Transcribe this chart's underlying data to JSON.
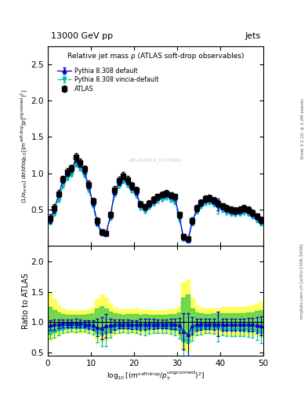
{
  "title_top": "13000 GeV pp",
  "title_right": "Jets",
  "plot_title": "Relative jet mass ρ (ATLAS soft-drop observables)",
  "right_label": "Rivet 3.1.10; ≥ 3.2M events",
  "mcplots_label": "mcplots.cern.ch [arXiv:1306.3436]",
  "atlas_label": "ATLAS2019_I1772062",
  "ylabel_ratio": "Ratio to ATLAS",
  "xlim": [
    0,
    50
  ],
  "ylim_main": [
    0,
    2.75
  ],
  "ylim_ratio": [
    0.45,
    2.25
  ],
  "x_data": [
    0.5,
    1.5,
    2.5,
    3.5,
    4.5,
    5.5,
    6.5,
    7.5,
    8.5,
    9.5,
    10.5,
    11.5,
    12.5,
    13.5,
    14.5,
    15.5,
    16.5,
    17.5,
    18.5,
    19.5,
    20.5,
    21.5,
    22.5,
    23.5,
    24.5,
    25.5,
    26.5,
    27.5,
    28.5,
    29.5,
    30.5,
    31.5,
    32.5,
    33.5,
    34.5,
    35.5,
    36.5,
    37.5,
    38.5,
    39.5,
    40.5,
    41.5,
    42.5,
    43.5,
    44.5,
    45.5,
    46.5,
    47.5,
    48.5,
    49.5
  ],
  "atlas_y": [
    0.38,
    0.52,
    0.72,
    0.92,
    1.02,
    1.07,
    1.22,
    1.15,
    1.06,
    0.85,
    0.62,
    0.35,
    0.2,
    0.18,
    0.43,
    0.77,
    0.9,
    0.97,
    0.91,
    0.83,
    0.77,
    0.58,
    0.54,
    0.59,
    0.64,
    0.68,
    0.71,
    0.73,
    0.7,
    0.68,
    0.43,
    0.13,
    0.1,
    0.35,
    0.52,
    0.6,
    0.65,
    0.66,
    0.63,
    0.59,
    0.55,
    0.52,
    0.5,
    0.49,
    0.5,
    0.52,
    0.5,
    0.46,
    0.41,
    0.36
  ],
  "atlas_yerr": [
    0.06,
    0.06,
    0.05,
    0.05,
    0.05,
    0.05,
    0.06,
    0.05,
    0.05,
    0.05,
    0.04,
    0.04,
    0.03,
    0.03,
    0.04,
    0.05,
    0.05,
    0.05,
    0.05,
    0.05,
    0.04,
    0.04,
    0.04,
    0.04,
    0.04,
    0.04,
    0.04,
    0.04,
    0.04,
    0.04,
    0.04,
    0.03,
    0.03,
    0.04,
    0.04,
    0.04,
    0.04,
    0.04,
    0.04,
    0.04,
    0.04,
    0.04,
    0.04,
    0.04,
    0.04,
    0.04,
    0.04,
    0.04,
    0.04,
    0.04
  ],
  "py308_y": [
    0.36,
    0.5,
    0.7,
    0.9,
    1.0,
    1.05,
    1.19,
    1.12,
    1.03,
    0.82,
    0.59,
    0.32,
    0.18,
    0.17,
    0.41,
    0.74,
    0.87,
    0.94,
    0.88,
    0.8,
    0.74,
    0.56,
    0.52,
    0.57,
    0.62,
    0.66,
    0.69,
    0.71,
    0.68,
    0.66,
    0.41,
    0.11,
    0.08,
    0.33,
    0.5,
    0.58,
    0.63,
    0.64,
    0.61,
    0.57,
    0.53,
    0.5,
    0.48,
    0.47,
    0.48,
    0.5,
    0.48,
    0.44,
    0.39,
    0.34
  ],
  "py308_yerr": [
    0.02,
    0.02,
    0.02,
    0.02,
    0.02,
    0.02,
    0.03,
    0.02,
    0.02,
    0.02,
    0.02,
    0.02,
    0.01,
    0.01,
    0.02,
    0.02,
    0.02,
    0.02,
    0.02,
    0.02,
    0.02,
    0.02,
    0.02,
    0.02,
    0.02,
    0.02,
    0.02,
    0.02,
    0.02,
    0.02,
    0.02,
    0.01,
    0.01,
    0.02,
    0.02,
    0.02,
    0.02,
    0.02,
    0.02,
    0.08,
    0.02,
    0.02,
    0.02,
    0.02,
    0.02,
    0.02,
    0.02,
    0.02,
    0.02,
    0.02
  ],
  "vincia_y": [
    0.32,
    0.44,
    0.63,
    0.82,
    0.93,
    0.98,
    1.12,
    1.06,
    0.97,
    0.77,
    0.55,
    0.29,
    0.16,
    0.15,
    0.38,
    0.7,
    0.82,
    0.89,
    0.83,
    0.76,
    0.69,
    0.52,
    0.48,
    0.53,
    0.58,
    0.62,
    0.64,
    0.66,
    0.63,
    0.6,
    0.37,
    0.09,
    0.07,
    0.3,
    0.47,
    0.54,
    0.59,
    0.6,
    0.57,
    0.53,
    0.49,
    0.46,
    0.44,
    0.43,
    0.44,
    0.46,
    0.44,
    0.4,
    0.35,
    0.3
  ],
  "vincia_yerr": [
    0.02,
    0.02,
    0.02,
    0.02,
    0.02,
    0.02,
    0.03,
    0.02,
    0.02,
    0.02,
    0.02,
    0.02,
    0.01,
    0.01,
    0.02,
    0.02,
    0.02,
    0.02,
    0.02,
    0.02,
    0.02,
    0.02,
    0.02,
    0.02,
    0.02,
    0.02,
    0.02,
    0.02,
    0.02,
    0.02,
    0.02,
    0.01,
    0.01,
    0.02,
    0.02,
    0.02,
    0.02,
    0.02,
    0.02,
    0.08,
    0.02,
    0.02,
    0.02,
    0.02,
    0.02,
    0.02,
    0.02,
    0.02,
    0.02,
    0.02
  ],
  "color_atlas": "#000000",
  "color_py308": "#0000cc",
  "color_vincia": "#00bbbb",
  "color_yellow": "#ffff44",
  "color_green": "#44cc44",
  "ratio_py308": [
    0.95,
    0.96,
    0.97,
    0.98,
    0.98,
    0.98,
    0.98,
    0.98,
    0.97,
    0.96,
    0.95,
    0.91,
    0.9,
    0.94,
    0.95,
    0.96,
    0.97,
    0.97,
    0.97,
    0.96,
    0.96,
    0.97,
    0.96,
    0.97,
    0.97,
    0.97,
    0.97,
    0.97,
    0.97,
    0.97,
    0.95,
    0.85,
    0.8,
    0.94,
    0.96,
    0.97,
    0.97,
    0.97,
    0.97,
    0.97,
    0.96,
    0.96,
    0.96,
    0.96,
    0.96,
    0.96,
    0.96,
    0.96,
    0.95,
    0.94
  ],
  "ratio_vincia": [
    0.84,
    0.85,
    0.87,
    0.89,
    0.91,
    0.92,
    0.92,
    0.92,
    0.92,
    0.91,
    0.89,
    0.83,
    0.8,
    0.83,
    0.88,
    0.91,
    0.91,
    0.92,
    0.91,
    0.92,
    0.9,
    0.9,
    0.89,
    0.9,
    0.91,
    0.91,
    0.9,
    0.9,
    0.9,
    0.88,
    0.86,
    0.69,
    0.7,
    0.86,
    0.9,
    0.9,
    0.91,
    0.91,
    0.91,
    0.9,
    0.89,
    0.88,
    0.88,
    0.88,
    0.88,
    0.88,
    0.88,
    0.87,
    0.85,
    0.83
  ],
  "ratio_py308_yerr": [
    0.08,
    0.08,
    0.07,
    0.06,
    0.06,
    0.06,
    0.07,
    0.06,
    0.06,
    0.07,
    0.08,
    0.14,
    0.18,
    0.19,
    0.11,
    0.08,
    0.07,
    0.07,
    0.07,
    0.07,
    0.07,
    0.09,
    0.09,
    0.08,
    0.08,
    0.07,
    0.07,
    0.07,
    0.08,
    0.08,
    0.12,
    0.3,
    0.35,
    0.14,
    0.1,
    0.09,
    0.08,
    0.08,
    0.09,
    0.2,
    0.1,
    0.1,
    0.1,
    0.1,
    0.1,
    0.1,
    0.11,
    0.11,
    0.13,
    0.15
  ],
  "ratio_vincia_yerr": [
    0.1,
    0.1,
    0.09,
    0.07,
    0.07,
    0.07,
    0.08,
    0.07,
    0.07,
    0.08,
    0.09,
    0.16,
    0.2,
    0.22,
    0.13,
    0.09,
    0.08,
    0.08,
    0.08,
    0.08,
    0.08,
    0.1,
    0.1,
    0.09,
    0.09,
    0.08,
    0.08,
    0.08,
    0.09,
    0.09,
    0.13,
    0.32,
    0.38,
    0.16,
    0.12,
    0.1,
    0.09,
    0.09,
    0.1,
    0.22,
    0.11,
    0.11,
    0.11,
    0.11,
    0.11,
    0.11,
    0.12,
    0.12,
    0.14,
    0.17
  ],
  "yellow_lo": [
    0.7,
    0.75,
    0.8,
    0.82,
    0.83,
    0.83,
    0.83,
    0.83,
    0.83,
    0.83,
    0.8,
    0.72,
    0.68,
    0.71,
    0.76,
    0.8,
    0.82,
    0.82,
    0.82,
    0.82,
    0.81,
    0.82,
    0.81,
    0.82,
    0.82,
    0.82,
    0.82,
    0.82,
    0.81,
    0.81,
    0.78,
    0.55,
    0.52,
    0.74,
    0.79,
    0.8,
    0.81,
    0.81,
    0.81,
    0.8,
    0.79,
    0.79,
    0.79,
    0.79,
    0.79,
    0.79,
    0.79,
    0.79,
    0.78,
    0.76
  ],
  "yellow_hi": [
    1.5,
    1.38,
    1.28,
    1.22,
    1.2,
    1.2,
    1.2,
    1.2,
    1.2,
    1.21,
    1.24,
    1.38,
    1.45,
    1.4,
    1.3,
    1.24,
    1.21,
    1.21,
    1.21,
    1.21,
    1.22,
    1.2,
    1.21,
    1.2,
    1.2,
    1.2,
    1.2,
    1.2,
    1.21,
    1.21,
    1.26,
    1.65,
    1.7,
    1.4,
    1.28,
    1.24,
    1.22,
    1.22,
    1.23,
    1.23,
    1.25,
    1.25,
    1.25,
    1.25,
    1.25,
    1.25,
    1.26,
    1.27,
    1.3,
    1.34
  ],
  "green_lo": [
    0.8,
    0.84,
    0.87,
    0.89,
    0.9,
    0.9,
    0.9,
    0.9,
    0.9,
    0.9,
    0.88,
    0.83,
    0.8,
    0.82,
    0.86,
    0.88,
    0.89,
    0.9,
    0.89,
    0.89,
    0.89,
    0.9,
    0.89,
    0.9,
    0.9,
    0.9,
    0.9,
    0.9,
    0.89,
    0.89,
    0.87,
    0.69,
    0.66,
    0.83,
    0.88,
    0.89,
    0.89,
    0.89,
    0.89,
    0.89,
    0.88,
    0.88,
    0.88,
    0.88,
    0.88,
    0.88,
    0.88,
    0.88,
    0.87,
    0.86
  ],
  "green_hi": [
    1.25,
    1.2,
    1.16,
    1.13,
    1.12,
    1.12,
    1.12,
    1.12,
    1.12,
    1.13,
    1.15,
    1.22,
    1.26,
    1.23,
    1.17,
    1.14,
    1.13,
    1.12,
    1.13,
    1.13,
    1.13,
    1.12,
    1.13,
    1.12,
    1.12,
    1.12,
    1.12,
    1.12,
    1.13,
    1.13,
    1.16,
    1.4,
    1.45,
    1.22,
    1.16,
    1.14,
    1.13,
    1.13,
    1.14,
    1.14,
    1.15,
    1.15,
    1.15,
    1.15,
    1.15,
    1.15,
    1.16,
    1.16,
    1.18,
    1.2
  ],
  "xticks": [
    0,
    10,
    20,
    30,
    40,
    50
  ],
  "yticks_main": [
    0.5,
    1.0,
    1.5,
    2.0,
    2.5
  ],
  "yticks_ratio": [
    0.5,
    1.0,
    1.5,
    2.0
  ]
}
